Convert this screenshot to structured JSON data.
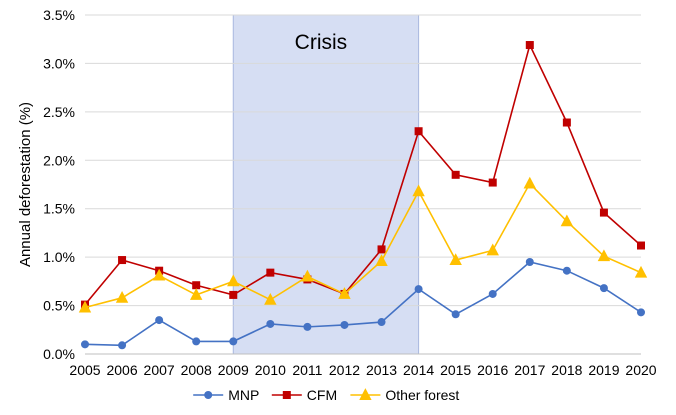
{
  "chart_data": {
    "type": "line",
    "title": "",
    "xlabel": "",
    "ylabel": "Annual deforestation (%)",
    "x": [
      2005,
      2006,
      2007,
      2008,
      2009,
      2010,
      2011,
      2012,
      2013,
      2014,
      2015,
      2016,
      2017,
      2018,
      2019,
      2020
    ],
    "x_tick_labels": [
      "2005",
      "2006",
      "2007",
      "2008",
      "2009",
      "2010",
      "2011",
      "2012",
      "2013",
      "2014",
      "2015",
      "2016",
      "2017",
      "2018",
      "2019",
      "2020"
    ],
    "ylim": [
      0,
      3.5
    ],
    "y_ticks": [
      0,
      0.5,
      1.0,
      1.5,
      2.0,
      2.5,
      3.0,
      3.5
    ],
    "y_tick_labels": [
      "0.0%",
      "0.5%",
      "1.0%",
      "1.5%",
      "2.0%",
      "2.5%",
      "3.0%",
      "3.5%"
    ],
    "grid": "horizontal",
    "legend_position": "bottom",
    "series": [
      {
        "name": "MNP",
        "color": "#4472C4",
        "marker": "circle",
        "values": [
          0.1,
          0.09,
          0.35,
          0.13,
          0.13,
          0.31,
          0.28,
          0.3,
          0.33,
          0.67,
          0.41,
          0.62,
          0.95,
          0.86,
          0.68,
          0.43
        ]
      },
      {
        "name": "CFM",
        "color": "#C00000",
        "marker": "square",
        "values": [
          0.51,
          0.97,
          0.86,
          0.71,
          0.61,
          0.84,
          0.77,
          0.62,
          1.08,
          2.3,
          1.85,
          1.77,
          3.19,
          2.39,
          1.46,
          1.12
        ]
      },
      {
        "name": "Other forest",
        "color": "#FFC000",
        "marker": "triangle",
        "values": [
          0.48,
          0.58,
          0.81,
          0.61,
          0.75,
          0.56,
          0.8,
          0.62,
          0.96,
          1.68,
          0.97,
          1.07,
          1.76,
          1.37,
          1.01,
          0.84
        ]
      }
    ],
    "annotations": [
      {
        "text": "Crisis",
        "x_start": 2009,
        "x_end": 2014,
        "fill": "#D6DEF3",
        "stroke": "#A9B8DF"
      }
    ]
  }
}
